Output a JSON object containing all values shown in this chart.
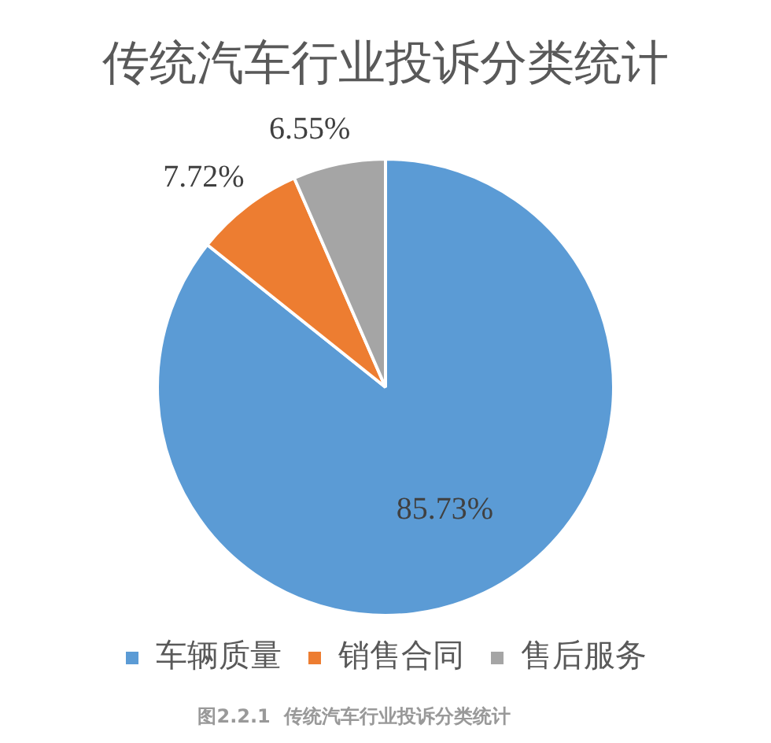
{
  "chart_data": {
    "type": "pie",
    "title": "传统汽车行业投诉分类统计",
    "categories": [
      "车辆质量",
      "销售合同",
      "售后服务"
    ],
    "values": [
      85.73,
      7.72,
      6.55
    ],
    "value_labels": [
      "85.73%",
      "7.72%",
      "6.55%"
    ],
    "colors": [
      "#5b9bd5",
      "#ed7d31",
      "#a5a5a5"
    ],
    "legend": "bottom",
    "annotations": [
      "图2.2.1  传统汽车行业投诉分类统计"
    ]
  }
}
